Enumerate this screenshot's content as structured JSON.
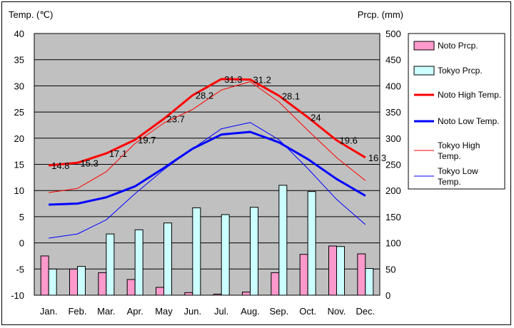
{
  "chart_data": {
    "type": "bar+line",
    "left_axis_title": "Temp. (℃)",
    "right_axis_title": "Prcp. (mm)",
    "categories": [
      "Jan.",
      "Feb.",
      "Mar.",
      "Apr.",
      "May",
      "Jun.",
      "Jul.",
      "Aug.",
      "Sep.",
      "Oct.",
      "Nov.",
      "Dec."
    ],
    "left_axis": {
      "min": -10,
      "max": 40,
      "ticks": [
        40,
        35,
        30,
        25,
        20,
        15,
        10,
        5,
        0,
        -5,
        -10
      ]
    },
    "right_axis": {
      "min": 0,
      "max": 500,
      "ticks": [
        500,
        450,
        400,
        350,
        300,
        250,
        200,
        150,
        100,
        50,
        0
      ]
    },
    "grid": "horizontal",
    "plot_background": "#c0c0c0",
    "legend_position": "right",
    "bar_series": [
      {
        "name": "Noto Prcp.",
        "color": "#ff99cc",
        "values": [
          75,
          50,
          43,
          30,
          15,
          5,
          2,
          6,
          43,
          78,
          94,
          79
        ]
      },
      {
        "name": "Tokyo Prcp.",
        "color": "#ccffff",
        "values": [
          50,
          55,
          117,
          125,
          138,
          167,
          154,
          168,
          210,
          198,
          93,
          51
        ]
      }
    ],
    "line_series": [
      {
        "name": "Noto High Temp.",
        "color": "#ff0000",
        "width": 3,
        "values": [
          14.8,
          15.3,
          17.1,
          19.7,
          23.7,
          28.2,
          31.3,
          31.2,
          28.1,
          24,
          19.6,
          16.3
        ],
        "labels": [
          "14.8",
          "15.3",
          "17.1",
          "19.7",
          "23.7",
          "28.2",
          "31.3",
          "31.2",
          "28.1",
          "24",
          "19.6",
          "16.3"
        ]
      },
      {
        "name": "Noto Low Temp.",
        "color": "#0000ff",
        "width": 3,
        "values": [
          7.3,
          7.5,
          8.7,
          10.8,
          14.3,
          18,
          20.7,
          21.2,
          19.2,
          16,
          12.2,
          9
        ]
      },
      {
        "name": "Tokyo High Temp.",
        "color": "#ff0000",
        "width": 1,
        "values": [
          9.6,
          10.4,
          13.6,
          19,
          22.9,
          25.5,
          29.2,
          30.8,
          26.9,
          21.5,
          16.3,
          11.9
        ]
      },
      {
        "name": "Tokyo Low Temp.",
        "color": "#0000ff",
        "width": 1,
        "values": [
          0.9,
          1.7,
          4.4,
          9.4,
          14,
          18,
          21.8,
          23,
          19.7,
          14.2,
          8.3,
          3.5
        ]
      }
    ],
    "legend": [
      {
        "label": "Noto Prcp.",
        "kind": "bar",
        "color": "#ff99cc"
      },
      {
        "label": "Tokyo Prcp.",
        "kind": "bar",
        "color": "#ccffff"
      },
      {
        "label": "Noto High Temp.",
        "kind": "line",
        "color": "#ff0000",
        "width": 3
      },
      {
        "label": "Noto Low Temp.",
        "kind": "line",
        "color": "#0000ff",
        "width": 3
      },
      {
        "label": "Tokyo High Temp.",
        "kind": "line",
        "color": "#ff0000",
        "width": 1
      },
      {
        "label": "Tokyo Low Temp.",
        "kind": "line",
        "color": "#0000ff",
        "width": 1
      }
    ]
  }
}
